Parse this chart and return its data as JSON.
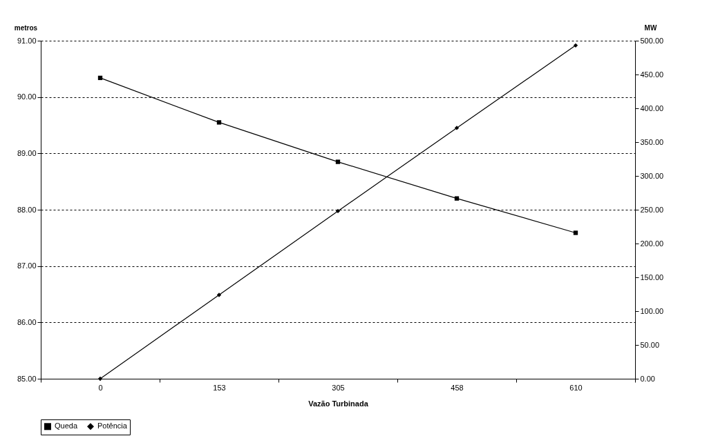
{
  "chart_data": {
    "type": "line",
    "xlabel": "Vazão Turbinada",
    "ylabel": "metros",
    "y2label": "MW",
    "categories": [
      "0",
      "153",
      "305",
      "458",
      "610"
    ],
    "series": [
      {
        "name": "Queda",
        "color": "#000000",
        "marker": "square",
        "axis": "y",
        "values": [
          90.34,
          89.55,
          88.85,
          88.2,
          87.59
        ]
      },
      {
        "name": "Potência",
        "color": "#000000",
        "marker": "diamond",
        "axis": "y2",
        "values": [
          0,
          124,
          248,
          371,
          493
        ]
      }
    ],
    "ylim": [
      85,
      91
    ],
    "yticks": [
      {
        "value": 85,
        "label": "85.00"
      },
      {
        "value": 86,
        "label": "86.00"
      },
      {
        "value": 87,
        "label": "87.00"
      },
      {
        "value": 88,
        "label": "88.00"
      },
      {
        "value": 89,
        "label": "89.00"
      },
      {
        "value": 90,
        "label": "90.00"
      },
      {
        "value": 91,
        "label": "91.00"
      }
    ],
    "y2lim": [
      0,
      500
    ],
    "y2ticks": [
      {
        "value": 0,
        "label": "0.00"
      },
      {
        "value": 50,
        "label": "50.00"
      },
      {
        "value": 100,
        "label": "100.00"
      },
      {
        "value": 150,
        "label": "150.00"
      },
      {
        "value": 200,
        "label": "200.00"
      },
      {
        "value": 250,
        "label": "250.00"
      },
      {
        "value": 300,
        "label": "300.00"
      },
      {
        "value": 350,
        "label": "350.00"
      },
      {
        "value": 400,
        "label": "400.00"
      },
      {
        "value": 450,
        "label": "450.00"
      },
      {
        "value": 500,
        "label": "500.00"
      }
    ],
    "grid": "y",
    "legend": "bottom"
  }
}
